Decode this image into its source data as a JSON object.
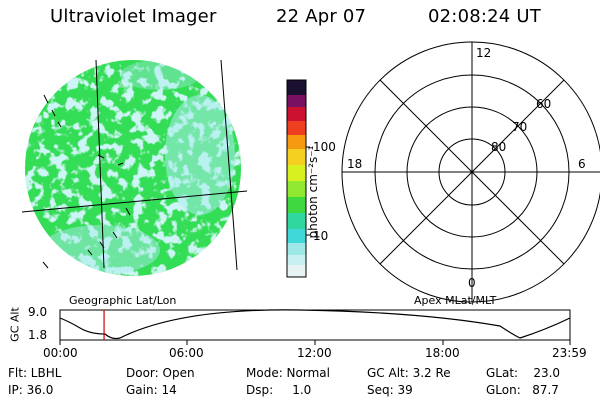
{
  "header": {
    "instrument": "Ultraviolet Imager",
    "date": "22 Apr 07",
    "time": "02:08:24 UT"
  },
  "colorbar": {
    "unit_label": "photon cm⁻²s⁻¹",
    "ticks": [
      "100",
      "10"
    ]
  },
  "polar_plot": {
    "mlt_labels": {
      "top": "12",
      "left": "18",
      "right": "6",
      "bottom": "0"
    },
    "lat_labels": [
      "60",
      "70",
      "80"
    ]
  },
  "timeline": {
    "left_caption": "Geographic Lat/Lon",
    "right_caption": "Apex MLat/MLT",
    "y_axis_label": "GC Alt",
    "y_ticks": [
      "9.0",
      "1.8"
    ],
    "x_ticks": [
      "00:00",
      "06:00",
      "12:00",
      "18:00",
      "23:59"
    ],
    "current_time_fraction": 0.0864
  },
  "status": {
    "flt": "Flt: LBHL",
    "ip": "IP: 36.0",
    "door": "Door: Open",
    "gain": "Gain: 14",
    "mode": "Mode: Normal",
    "dsp": "Dsp:     1.0",
    "gc_alt": "GC Alt: 3.2 Re",
    "seq": "Seq: 39",
    "glat": "GLat:    23.0",
    "glon": "GLon:   87.7"
  },
  "colors": {
    "image_green": "#33dd55",
    "image_cyan": "#9fe8e8",
    "marker": "#cc0000"
  }
}
